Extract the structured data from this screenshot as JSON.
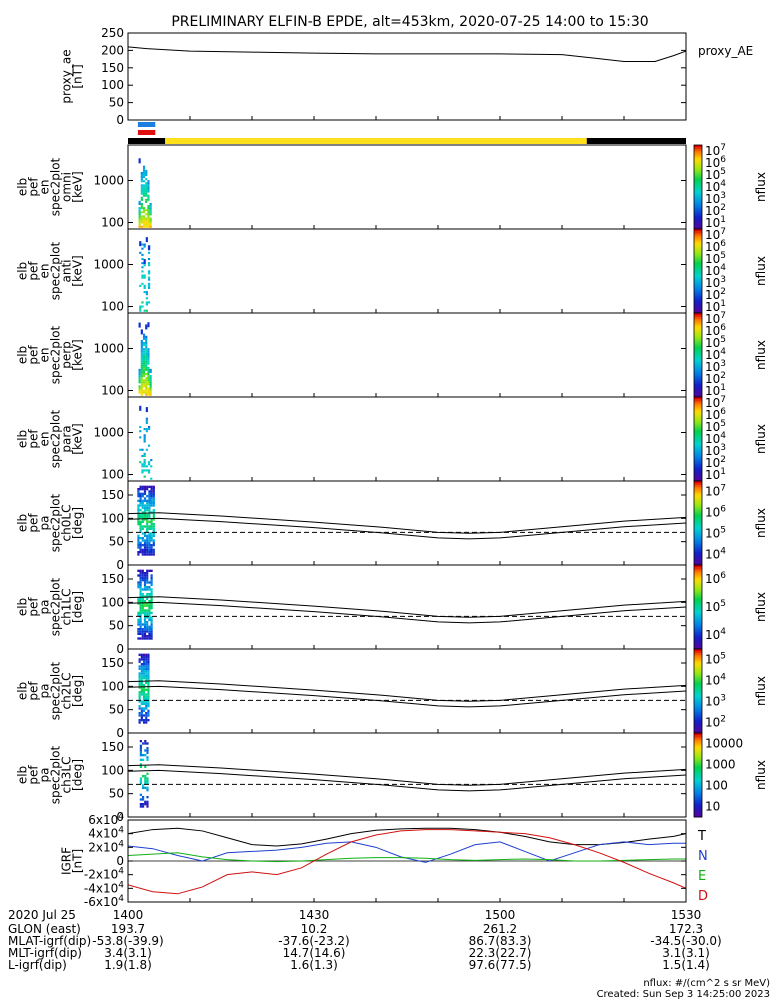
{
  "title": "PRELIMINARY ELFIN-B EPDE, alt=453km, 2020-07-25 14:00 to 15:30",
  "colors": {
    "orbit_bar_day": "#ffe01a",
    "orbit_bar_night": "#000000",
    "marker_blue": "#1a7fe0",
    "marker_red": "#e01010",
    "grf_T": "#000000",
    "grf_N": "#1f3fd0",
    "grf_E": "#10b010",
    "grf_D": "#d01010"
  },
  "footer": {
    "time_row": {
      "label": "2020 Jul 25",
      "values": [
        "1400",
        "1430",
        "1500",
        "1530"
      ]
    },
    "rows": [
      {
        "label": "GLON (east)",
        "values": [
          "193.7",
          "10.2",
          "261.2",
          "172.3"
        ]
      },
      {
        "label": "MLAT-igrf(dip)",
        "values": [
          "-53.8(-39.9)",
          "-37.6(-23.2)",
          "86.7(83.3)",
          "-34.5(-30.0)"
        ]
      },
      {
        "label": "MLT-igrf(dip)",
        "values": [
          "3.4(3.1)",
          "14.7(14.6)",
          "22.3(22.7)",
          "3.1(3.1)"
        ]
      },
      {
        "label": "L-igrf(dip)",
        "values": [
          "1.9(1.8)",
          "1.6(1.3)",
          "97.6(77.5)",
          "1.5(1.4)"
        ]
      }
    ],
    "units_note": "nflux: #/(cm^2 s sr MeV)",
    "created": "Created: Sun Sep  3 14:25:00 2023"
  },
  "chart_data": [
    {
      "type": "line",
      "id": "proxy_ae",
      "ylabel_lines": [
        "proxy_ae",
        "[nT]"
      ],
      "legend": "proxy_AE",
      "ylim": [
        0,
        250
      ],
      "yticks": [
        "0",
        "50",
        "100",
        "150",
        "200",
        "250"
      ],
      "x_minutes": [
        0,
        3,
        10,
        20,
        30,
        40,
        50,
        60,
        70,
        75,
        80,
        85,
        88,
        90
      ],
      "values": [
        210,
        205,
        198,
        195,
        192,
        190,
        190,
        190,
        188,
        178,
        168,
        168,
        185,
        198
      ]
    },
    {
      "type": "heatmap",
      "id": "en_omni",
      "ylabel_lines": [
        "elb",
        "pef",
        "en",
        "spec2plot",
        "omni",
        "[keV]"
      ],
      "ytype": "log",
      "ylim": [
        70,
        7000
      ],
      "yticks": [
        "100",
        "1000"
      ],
      "colorbar": {
        "label": "nflux",
        "scale": "log",
        "ticks": [
          "10^1",
          "10^2",
          "10^3",
          "10^4",
          "10^5",
          "10^6",
          "10^7"
        ]
      },
      "active_minutes": [
        1.7,
        3.8
      ],
      "peak_log_flux": 6.0
    },
    {
      "type": "heatmap",
      "id": "en_anti",
      "ylabel_lines": [
        "elb",
        "pef",
        "en",
        "spec2plot",
        "anti",
        "[keV]"
      ],
      "ytype": "log",
      "ylim": [
        70,
        7000
      ],
      "yticks": [
        "100",
        "1000"
      ],
      "colorbar": {
        "label": "nflux",
        "scale": "log",
        "ticks": [
          "10^1",
          "10^2",
          "10^3",
          "10^4",
          "10^5",
          "10^6",
          "10^7"
        ]
      },
      "active_minutes": [
        1.8,
        3.4
      ],
      "peak_log_flux": 4.0
    },
    {
      "type": "heatmap",
      "id": "en_perp",
      "ylabel_lines": [
        "elb",
        "pef",
        "en",
        "spec2plot",
        "perp",
        "[keV]"
      ],
      "ytype": "log",
      "ylim": [
        70,
        7000
      ],
      "yticks": [
        "100",
        "1000"
      ],
      "colorbar": {
        "label": "nflux",
        "scale": "log",
        "ticks": [
          "10^1",
          "10^2",
          "10^3",
          "10^4",
          "10^5",
          "10^6",
          "10^7"
        ]
      },
      "active_minutes": [
        1.7,
        3.8
      ],
      "peak_log_flux": 6.0
    },
    {
      "type": "heatmap",
      "id": "en_para",
      "ylabel_lines": [
        "elb",
        "pef",
        "en",
        "spec2plot",
        "para",
        "[keV]"
      ],
      "ytype": "log",
      "ylim": [
        70,
        7000
      ],
      "yticks": [
        "100",
        "1000"
      ],
      "colorbar": {
        "label": "nflux",
        "scale": "log",
        "ticks": [
          "10^1",
          "10^2",
          "10^3",
          "10^4",
          "10^5",
          "10^6",
          "10^7"
        ]
      },
      "active_minutes": [
        1.8,
        3.6
      ],
      "peak_log_flux": 4.0
    },
    {
      "type": "heatmap",
      "id": "pa_ch0",
      "ylabel_lines": [
        "elb",
        "pef",
        "pa",
        "spec2plot",
        "ch0LC",
        "[deg]"
      ],
      "ylim": [
        0,
        180
      ],
      "yticks": [
        "0",
        "50",
        "100",
        "150"
      ],
      "colorbar": {
        "label": "nflux",
        "scale": "log",
        "ticks": [
          "10^4",
          "10^5",
          "10^6",
          "10^7"
        ]
      },
      "active_minutes": [
        1.5,
        4.3
      ],
      "lc_curve": {
        "x_minutes": [
          0,
          5,
          15,
          30,
          40,
          50,
          55,
          60,
          70,
          80,
          90
        ],
        "solid": [
          110,
          112,
          105,
          92,
          82,
          70,
          68,
          70,
          82,
          94,
          102
        ],
        "dashed": [
          70,
          70,
          70,
          70,
          70,
          70,
          70,
          70,
          70,
          70,
          70
        ]
      }
    },
    {
      "type": "heatmap",
      "id": "pa_ch1",
      "ylabel_lines": [
        "elb",
        "pef",
        "pa",
        "spec2plot",
        "ch1LC",
        "[deg]"
      ],
      "ylim": [
        0,
        180
      ],
      "yticks": [
        "0",
        "50",
        "100",
        "150"
      ],
      "colorbar": {
        "label": "nflux",
        "scale": "log",
        "ticks": [
          "10^4",
          "10^5",
          "10^6"
        ]
      },
      "active_minutes": [
        1.5,
        3.8
      ],
      "lc_curve": {
        "x_minutes": [
          0,
          5,
          15,
          30,
          40,
          50,
          55,
          60,
          70,
          80,
          90
        ],
        "solid": [
          110,
          112,
          105,
          92,
          82,
          70,
          68,
          70,
          82,
          94,
          102
        ],
        "dashed": [
          70,
          70,
          70,
          70,
          70,
          70,
          70,
          70,
          70,
          70,
          70
        ]
      }
    },
    {
      "type": "heatmap",
      "id": "pa_ch2",
      "ylabel_lines": [
        "elb",
        "pef",
        "pa",
        "spec2plot",
        "ch2LC",
        "[deg]"
      ],
      "ylim": [
        0,
        180
      ],
      "yticks": [
        "0",
        "50",
        "100",
        "150"
      ],
      "colorbar": {
        "label": "nflux",
        "scale": "log",
        "ticks": [
          "10^2",
          "10^3",
          "10^4",
          "10^5"
        ]
      },
      "active_minutes": [
        1.7,
        3.2
      ],
      "lc_curve": {
        "x_minutes": [
          0,
          5,
          15,
          30,
          40,
          50,
          55,
          60,
          70,
          80,
          90
        ],
        "solid": [
          110,
          112,
          105,
          92,
          82,
          70,
          68,
          70,
          82,
          94,
          102
        ],
        "dashed": [
          70,
          70,
          70,
          70,
          70,
          70,
          70,
          70,
          70,
          70,
          70
        ]
      }
    },
    {
      "type": "heatmap",
      "id": "pa_ch3",
      "ylabel_lines": [
        "elb",
        "pef",
        "pa",
        "spec2plot",
        "ch3LC",
        "[deg]"
      ],
      "ylim": [
        0,
        180
      ],
      "yticks": [
        "0",
        "50",
        "100",
        "150"
      ],
      "colorbar": {
        "label": "nflux",
        "scale": "log",
        "ticks": [
          "10",
          "100",
          "1000",
          "10000"
        ]
      },
      "active_minutes": [
        1.9,
        3.0
      ],
      "lc_curve": {
        "x_minutes": [
          0,
          5,
          15,
          30,
          40,
          50,
          55,
          60,
          70,
          80,
          90
        ],
        "solid": [
          110,
          112,
          105,
          92,
          82,
          70,
          68,
          70,
          82,
          94,
          102
        ],
        "dashed": [
          70,
          70,
          70,
          70,
          70,
          70,
          70,
          70,
          70,
          70,
          70
        ]
      }
    },
    {
      "type": "line",
      "id": "igrf",
      "ylabel_lines": [
        "IGRF",
        "[nT]"
      ],
      "ylim": [
        -60000,
        60000
      ],
      "yticks": [
        "-6x10^4",
        "-4x10^4",
        "-2x10^4",
        "0",
        "2x10^4",
        "4x10^4",
        "6x10^4"
      ],
      "x_minutes": [
        0,
        4,
        8,
        12,
        16,
        20,
        24,
        28,
        32,
        36,
        40,
        44,
        48,
        52,
        56,
        60,
        64,
        68,
        72,
        76,
        80,
        84,
        88,
        90
      ],
      "series": [
        {
          "name": "T",
          "values": [
            40000,
            46000,
            48000,
            44000,
            34000,
            24000,
            22000,
            25000,
            32000,
            40000,
            45000,
            47000,
            48000,
            48000,
            46000,
            42000,
            36000,
            28000,
            24000,
            24000,
            27000,
            32000,
            36000,
            40000
          ]
        },
        {
          "name": "N",
          "values": [
            22000,
            18000,
            8000,
            0,
            12000,
            14000,
            16000,
            20000,
            26000,
            28000,
            20000,
            6000,
            -2000,
            10000,
            24000,
            28000,
            14000,
            0,
            12000,
            24000,
            28000,
            24000,
            26000,
            26000
          ]
        },
        {
          "name": "E",
          "values": [
            8000,
            10000,
            12000,
            6000,
            2000,
            0,
            -1000,
            0,
            2000,
            4000,
            5000,
            5000,
            4000,
            2000,
            1000,
            2000,
            3000,
            2000,
            0,
            0,
            1000,
            2000,
            3000,
            3000
          ]
        },
        {
          "name": "D",
          "values": [
            -35000,
            -45000,
            -48000,
            -38000,
            -20000,
            -16000,
            -20000,
            -10000,
            10000,
            28000,
            38000,
            44000,
            46000,
            46000,
            44000,
            42000,
            40000,
            34000,
            24000,
            12000,
            -2000,
            -18000,
            -32000,
            -40000
          ]
        }
      ]
    }
  ]
}
